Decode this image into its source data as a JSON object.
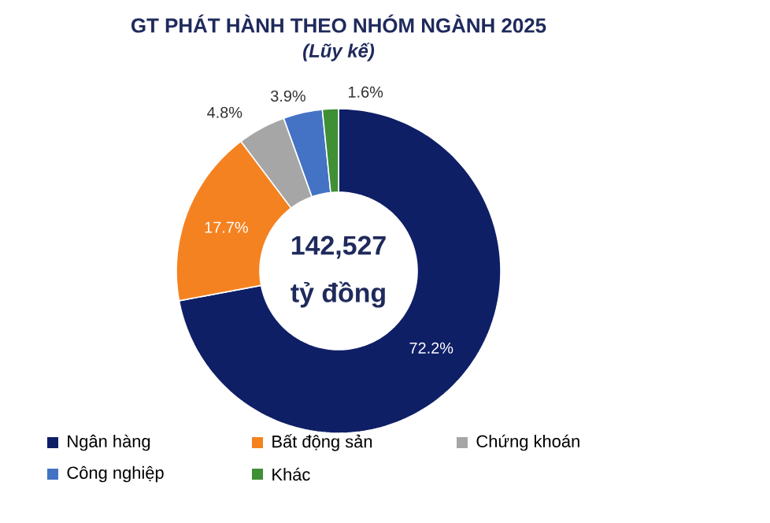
{
  "chart_data": {
    "type": "donut",
    "title": "GT PHÁT HÀNH THEO NHÓM NGÀNH 2025",
    "subtitle": "(Lũy kế)",
    "categories": [
      "Ngân hàng",
      "Bất động sản",
      "Chứng khoán",
      "Công nghiệp",
      "Khác"
    ],
    "values": [
      72.2,
      17.7,
      4.8,
      3.9,
      1.6
    ],
    "value_labels": [
      "72.2%",
      "17.7%",
      "4.8%",
      "3.9%",
      "1.6%"
    ],
    "colors": [
      "#0f1f66",
      "#f58220",
      "#a6a6a6",
      "#4472c4",
      "#3f8f35"
    ],
    "annotations": [
      "142,527",
      "tỷ đồng"
    ],
    "legend": "bottom"
  }
}
